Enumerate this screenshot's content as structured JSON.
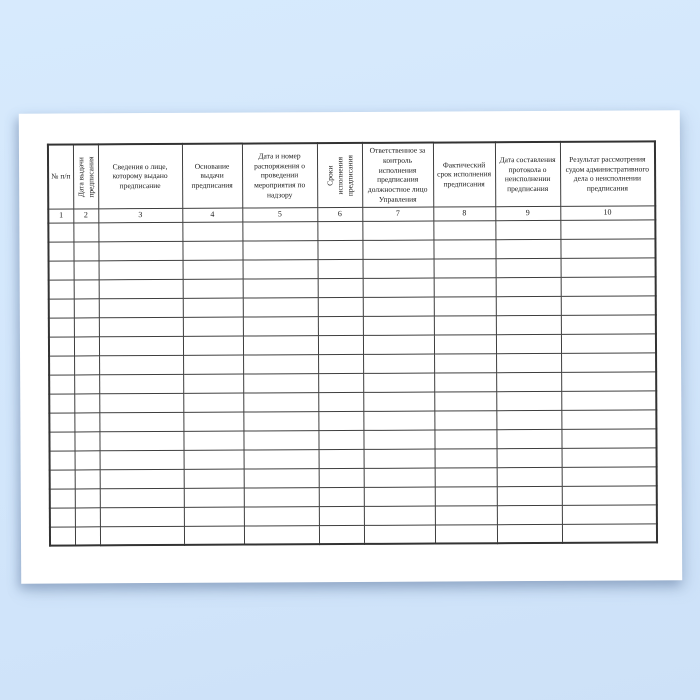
{
  "theme": {
    "background_top": "#d7eafd",
    "background_bottom": "#cde1f8",
    "paper_color": "#ffffff",
    "table_border_color": "#3f3f3f",
    "text_color": "#1a1a1a"
  },
  "document": {
    "kind": "blank-register-form"
  },
  "table": {
    "columns": [
      {
        "number": "1",
        "label": "№ п/п",
        "orientation": "horizontal"
      },
      {
        "number": "2",
        "label": "Дата выдачи предписания",
        "orientation": "vertical"
      },
      {
        "number": "3",
        "label": "Сведения о лице, которому выдано предписание",
        "orientation": "horizontal"
      },
      {
        "number": "4",
        "label": "Основание выдачи предписания",
        "orientation": "horizontal"
      },
      {
        "number": "5",
        "label": "Дата и номер распоряжения о проведении мероприятия по надзору",
        "orientation": "horizontal"
      },
      {
        "number": "6",
        "label": "Сроки исполнения предписания",
        "orientation": "vertical"
      },
      {
        "number": "7",
        "label": "Ответственное за контроль исполнения предписания должностное лицо Управления",
        "orientation": "horizontal"
      },
      {
        "number": "8",
        "label": "Фактический срок исполнения предписания",
        "orientation": "horizontal"
      },
      {
        "number": "9",
        "label": "Дата составления протокола о неисполнении предписания",
        "orientation": "horizontal"
      },
      {
        "number": "10",
        "label": "Результат рассмотрения судом административного дела о неисполнении предписания",
        "orientation": "horizontal"
      }
    ],
    "empty_row_count": 17,
    "cell_values": []
  }
}
